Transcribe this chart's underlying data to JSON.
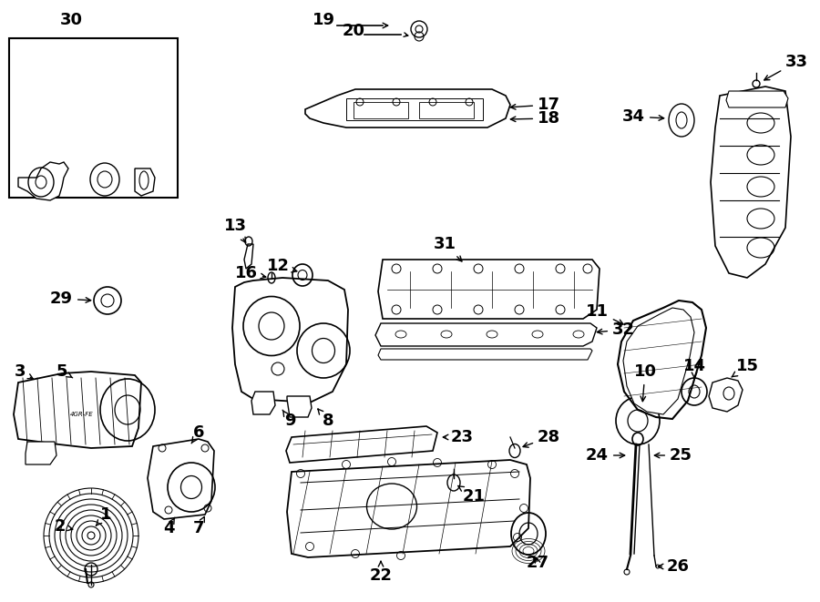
{
  "bg_color": "#ffffff",
  "fig_width": 9.0,
  "fig_height": 6.61,
  "dpi": 100,
  "label_fontsize": 13,
  "arrow_color": "#000000",
  "text_color": "#000000"
}
